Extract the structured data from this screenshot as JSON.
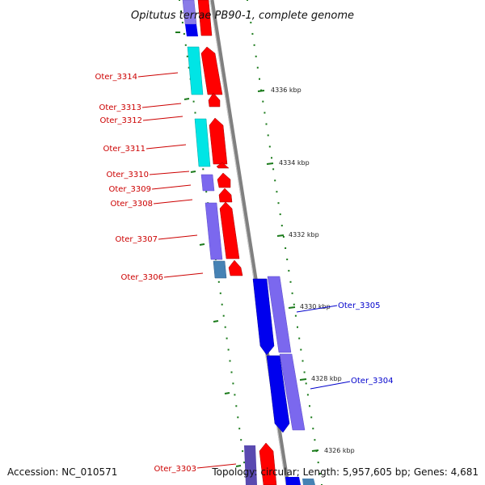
{
  "title": "Opitutus terrae PB90-1, complete genome",
  "accession": "Accession: NC_010571",
  "topology": "Topology: circular; Length: 5,957,605 bp; Genes: 4,681",
  "colors": {
    "backbone": "#808080",
    "scale_tick": "#1a7a1a",
    "label_left": "#cc0000",
    "label_right": "#0000cc",
    "forward_cds": "#ff0000",
    "reverse_cds": "#0000ee",
    "cyan_feature": "#00e0e0",
    "purple_feature": "#7b68ee",
    "steel_feature": "#4682b4"
  },
  "scale": {
    "ticks": [
      "4336 kbp",
      "4334 kbp",
      "4332 kbp",
      "4330 kbp",
      "4328 kbp",
      "4326 kbp"
    ]
  },
  "genes": {
    "left": [
      "Oter_3314",
      "Oter_3313",
      "Oter_3312",
      "Oter_3311",
      "Oter_3310",
      "Oter_3309",
      "Oter_3308",
      "Oter_3307",
      "Oter_3306",
      "Oter_3303"
    ],
    "right": [
      "Oter_3305",
      "Oter_3304"
    ]
  }
}
